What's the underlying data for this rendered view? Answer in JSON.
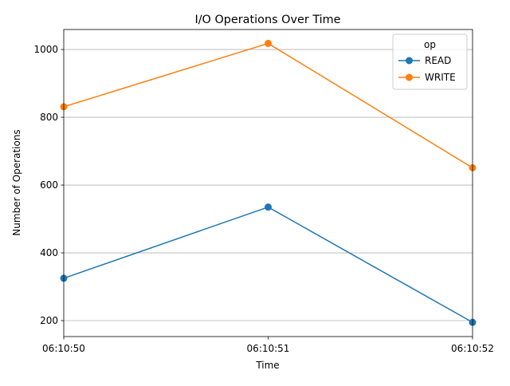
{
  "chart_data": {
    "type": "line",
    "title": "I/O Operations Over Time",
    "xlabel": "Time",
    "ylabel": "Number of Operations",
    "x": [
      "06:10:50",
      "06:10:51",
      "06:10:52"
    ],
    "xlim": [
      "06:10:50",
      "06:10:52"
    ],
    "ylim": [
      153,
      1059
    ],
    "yticks": [
      200,
      400,
      600,
      800,
      1000
    ],
    "grid": "y-axis only",
    "legend": {
      "title": "op",
      "placement": "top-right"
    },
    "series": [
      {
        "name": "READ",
        "color": "#1f77b4",
        "marker": "circle",
        "values": [
          325,
          535,
          195
        ]
      },
      {
        "name": "WRITE",
        "color": "#ff7f0e",
        "marker": "circle",
        "values": [
          831,
          1018,
          651
        ]
      }
    ]
  }
}
